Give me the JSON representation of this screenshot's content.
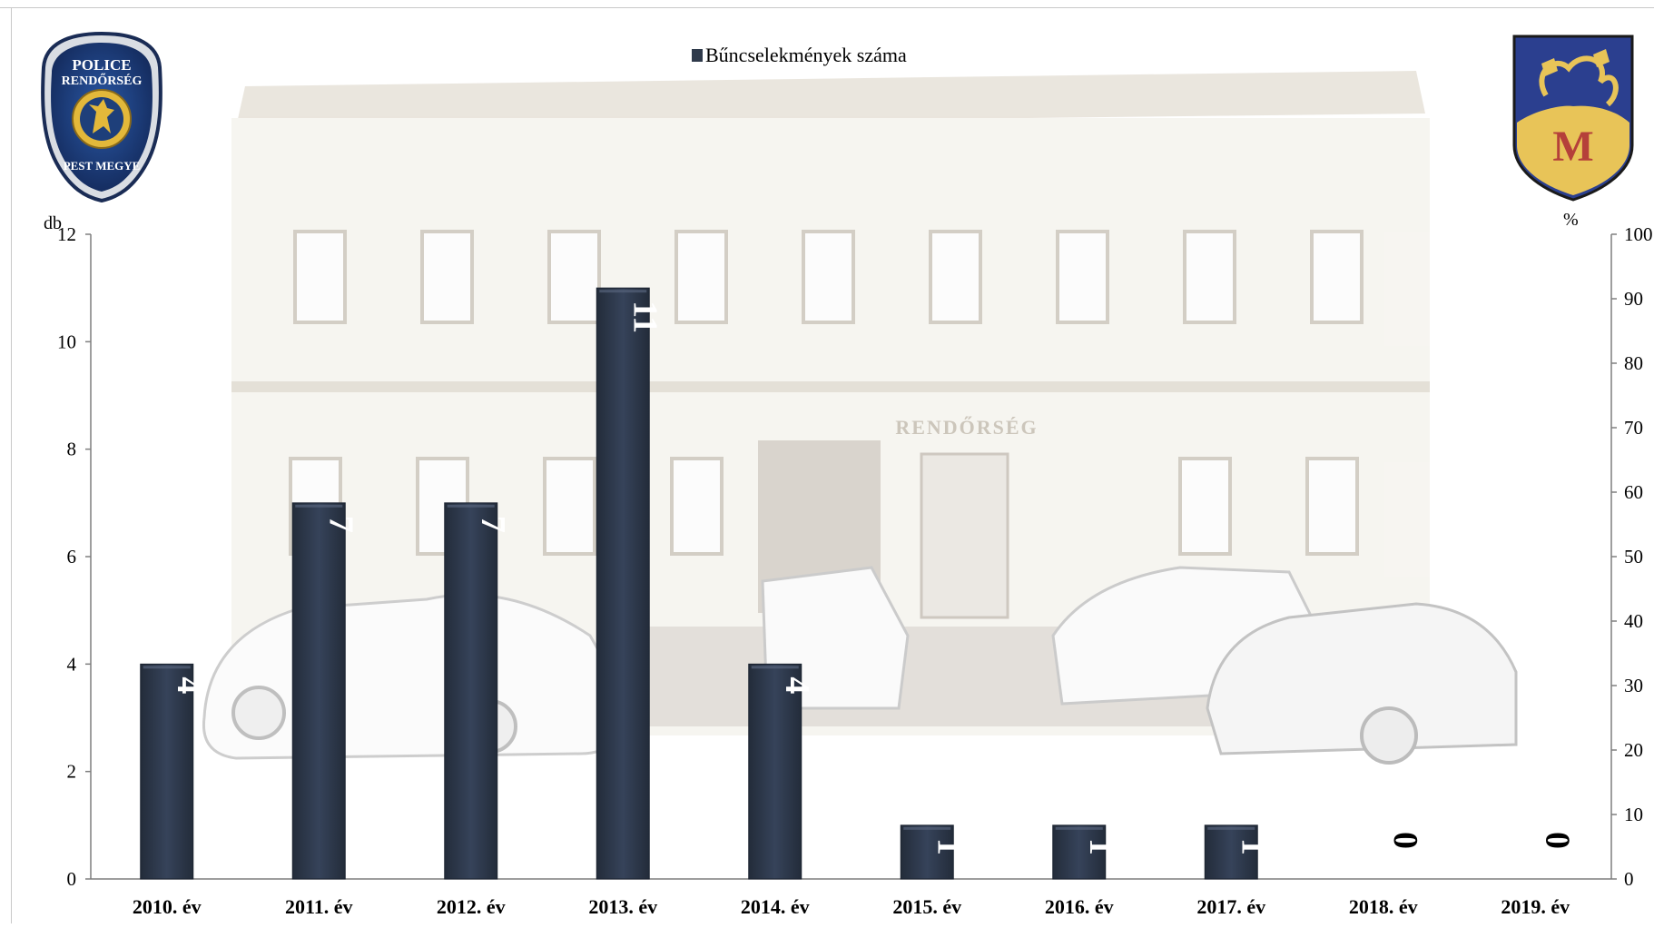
{
  "chart_data": {
    "type": "bar",
    "categories": [
      "2010. év",
      "2011. év",
      "2012. év",
      "2013. év",
      "2014. év",
      "2015. év",
      "2016. év",
      "2017. év",
      "2018. év",
      "2019. év"
    ],
    "series": [
      {
        "name": "Bűncselekmények száma",
        "values": [
          4,
          7,
          7,
          11,
          4,
          1,
          1,
          1,
          0,
          0
        ],
        "color": "#2f3a4b"
      }
    ],
    "ylabel": "db",
    "ylim": [
      0,
      12
    ],
    "yticks": [
      0,
      2,
      4,
      6,
      8,
      10,
      12
    ],
    "y2label": "%",
    "y2lim": [
      0,
      100
    ],
    "y2ticks": [
      0,
      10,
      20,
      30,
      40,
      50,
      60,
      70,
      80,
      90,
      100
    ],
    "legend_position": "top-center",
    "grid": false,
    "data_labels": "inside-top, rotated"
  },
  "logos": {
    "police_badge": {
      "top_text": "POLICE",
      "middle_text": "RENDŐRSÉG",
      "bottom_text": "PEST MEGYE",
      "colors": {
        "blue": "#1e3f7a",
        "gold": "#e3b83a",
        "silver": "#d9dde3"
      }
    },
    "town_crest": {
      "letter": "M",
      "colors": {
        "blue": "#2b3f8f",
        "gold": "#e8c458",
        "red": "#b5403a"
      }
    }
  },
  "background": {
    "sign_text": "RENDŐRSÉG",
    "wall_color": "#f6f4ef",
    "shadow_color": "#c8c2b8"
  }
}
